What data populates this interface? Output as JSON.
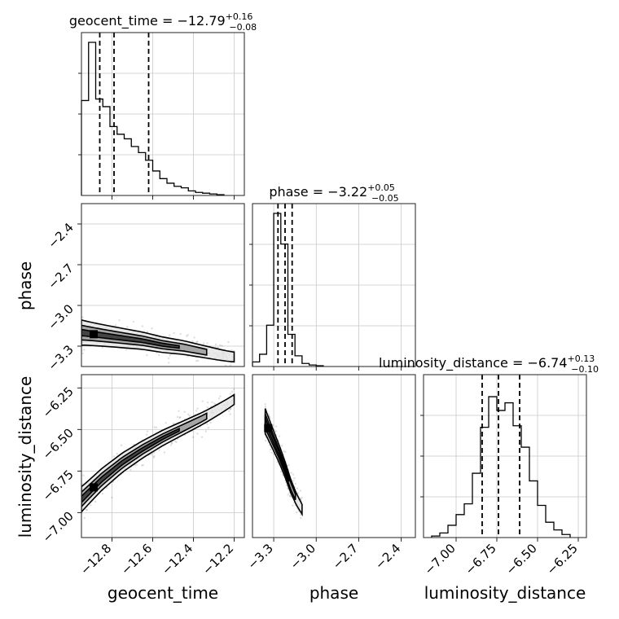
{
  "chart_data": [
    {
      "type": "histogram",
      "panel": "geocent_time-marginal",
      "title_main": "geocent_time = −12.79",
      "title_sup": "+0.16",
      "title_sub": "−0.08",
      "xlim": [
        -12.95,
        -12.15
      ],
      "x_ticks": [
        -12.8,
        -12.6,
        -12.4,
        -12.2
      ],
      "quantiles": [
        -12.86,
        -12.79,
        -12.62
      ],
      "bins": [
        -12.95,
        -12.915,
        -12.88,
        -12.845,
        -12.81,
        -12.775,
        -12.74,
        -12.705,
        -12.67,
        -12.635,
        -12.6,
        -12.565,
        -12.53,
        -12.495,
        -12.46,
        -12.425,
        -12.39,
        -12.355,
        -12.32,
        -12.285,
        -12.25
      ],
      "counts": [
        0.62,
        1.0,
        0.63,
        0.58,
        0.45,
        0.4,
        0.37,
        0.32,
        0.28,
        0.23,
        0.16,
        0.11,
        0.08,
        0.06,
        0.05,
        0.03,
        0.02,
        0.015,
        0.01,
        0.005
      ],
      "grid": true
    },
    {
      "type": "histogram",
      "panel": "phase-marginal",
      "title_main": "phase = −3.22",
      "title_sup": "+0.05",
      "title_sub": "−0.05",
      "xlim": [
        -3.45,
        -2.3
      ],
      "x_ticks": [
        -3.3,
        -3.0,
        -2.7,
        -2.4
      ],
      "quantiles": [
        -3.27,
        -3.22,
        -3.17
      ],
      "bins": [
        -3.45,
        -3.4,
        -3.35,
        -3.3,
        -3.25,
        -3.2,
        -3.15,
        -3.1,
        -3.05,
        -3.0,
        -2.95
      ],
      "counts": [
        0.03,
        0.08,
        0.27,
        1.0,
        0.8,
        0.21,
        0.07,
        0.02,
        0.01,
        0.005
      ],
      "grid": true
    },
    {
      "type": "histogram",
      "panel": "luminosity_distance-marginal",
      "title_main": "luminosity_distance = −6.74",
      "title_sup": "+0.13",
      "title_sub": "−0.10",
      "xlim": [
        -7.2,
        -6.2
      ],
      "x_ticks": [
        -7.0,
        -6.75,
        -6.5,
        -6.25
      ],
      "x_tick_labels": [
        "−7.00",
        "−6.75",
        "−6.50",
        "−6.25"
      ],
      "quantiles": [
        -6.84,
        -6.74,
        -6.61
      ],
      "bins": [
        -7.15,
        -7.1,
        -7.05,
        -7.0,
        -6.95,
        -6.9,
        -6.85,
        -6.8,
        -6.75,
        -6.7,
        -6.65,
        -6.6,
        -6.55,
        -6.5,
        -6.45,
        -6.4,
        -6.35,
        -6.3
      ],
      "counts": [
        0.01,
        0.03,
        0.08,
        0.15,
        0.22,
        0.42,
        0.72,
        0.92,
        0.83,
        0.88,
        0.73,
        0.59,
        0.37,
        0.21,
        0.1,
        0.05,
        0.02
      ],
      "grid": true
    },
    {
      "type": "scatter",
      "panel": "geocent_time-vs-phase",
      "xlim": [
        -12.95,
        -12.15
      ],
      "ylim": [
        -3.45,
        -2.25
      ],
      "y_ticks": [
        -2.4,
        -2.7,
        -3.0,
        -3.3
      ],
      "ylabel": "phase",
      "density_ridge": {
        "x": [
          -12.95,
          -12.85,
          -12.75,
          -12.65,
          -12.55,
          -12.45,
          -12.35,
          -12.25,
          -12.2
        ],
        "y": [
          -3.2,
          -3.22,
          -3.24,
          -3.26,
          -3.29,
          -3.31,
          -3.34,
          -3.37,
          -3.38
        ]
      },
      "grid": true
    },
    {
      "type": "scatter",
      "panel": "geocent_time-vs-luminosity_distance",
      "xlim": [
        -12.95,
        -12.15
      ],
      "ylim": [
        -7.15,
        -6.17
      ],
      "x_ticks": [
        -12.8,
        -12.6,
        -12.4,
        -12.2
      ],
      "y_ticks": [
        -6.25,
        -6.5,
        -6.75,
        -7.0
      ],
      "y_tick_labels": [
        "−6.25",
        "−6.50",
        "−6.75",
        "−7.00"
      ],
      "xlabel": "geocent_time",
      "ylabel": "luminosity_distance",
      "density_ridge": {
        "x": [
          -12.95,
          -12.85,
          -12.75,
          -12.65,
          -12.55,
          -12.45,
          -12.35,
          -12.25,
          -12.2
        ],
        "y": [
          -6.92,
          -6.8,
          -6.7,
          -6.62,
          -6.55,
          -6.49,
          -6.43,
          -6.36,
          -6.32
        ]
      },
      "grid": true
    },
    {
      "type": "scatter",
      "panel": "phase-vs-luminosity_distance",
      "xlim": [
        -3.45,
        -2.3
      ],
      "ylim": [
        -7.15,
        -6.17
      ],
      "x_ticks": [
        -3.3,
        -3.0,
        -2.7,
        -2.4
      ],
      "xlabel": "phase",
      "density_ridge": {
        "x": [
          -3.36,
          -3.31,
          -3.26,
          -3.22,
          -3.18,
          -3.14,
          -3.1
        ],
        "y": [
          -6.45,
          -6.55,
          -6.65,
          -6.74,
          -6.84,
          -6.92,
          -6.98
        ]
      },
      "grid": true
    }
  ],
  "axis_labels": {
    "geocent_time": "geocent_time",
    "phase": "phase",
    "luminosity_distance": "luminosity_distance"
  }
}
